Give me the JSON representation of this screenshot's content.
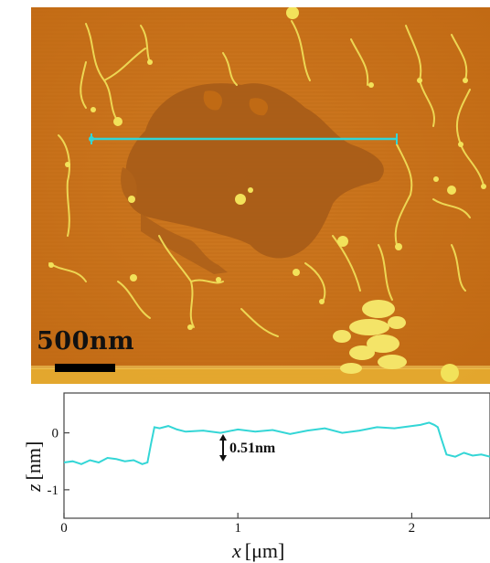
{
  "image": {
    "description_icon": "afm-topography-image",
    "colors": {
      "substrate": "#c7711a",
      "substrate_dark": "#b4620f",
      "film": "#a35a18",
      "features": "#f2e25a",
      "bright_edge": "#e9b232",
      "profile_line": "#33d6d6"
    }
  },
  "scale_bar": {
    "label": "500nm"
  },
  "profile": {
    "annotation": "0.51nm",
    "x_axis_title_var": "x",
    "x_axis_title_unit": "[μm]",
    "y_axis_title_var": "z",
    "y_axis_title_unit": "[nm]",
    "x_ticks": [
      "0",
      "1",
      "2"
    ],
    "y_ticks": [
      "0",
      "-1"
    ]
  },
  "chart_data": {
    "type": "line",
    "title": "",
    "xlabel": "x [μm]",
    "ylabel": "z [nm]",
    "xlim": [
      0,
      2.45
    ],
    "ylim": [
      -1.5,
      0.7
    ],
    "x_ticks": [
      0,
      1,
      2
    ],
    "y_ticks": [
      0,
      -1
    ],
    "grid": false,
    "series": [
      {
        "color": "#33d6d6",
        "x": [
          0,
          0.05,
          0.1,
          0.15,
          0.2,
          0.25,
          0.3,
          0.35,
          0.4,
          0.45,
          0.48,
          0.5,
          0.52,
          0.55,
          0.6,
          0.65,
          0.7,
          0.8,
          0.9,
          1.0,
          1.1,
          1.2,
          1.3,
          1.4,
          1.5,
          1.6,
          1.7,
          1.8,
          1.9,
          2.0,
          2.05,
          2.1,
          2.13,
          2.15,
          2.17,
          2.2,
          2.25,
          2.3,
          2.35,
          2.4,
          2.45
        ],
        "y": [
          -0.52,
          -0.5,
          -0.55,
          -0.48,
          -0.52,
          -0.44,
          -0.46,
          -0.5,
          -0.48,
          -0.55,
          -0.52,
          -0.2,
          0.1,
          0.08,
          0.12,
          0.06,
          0.02,
          0.04,
          0.0,
          0.06,
          0.02,
          0.05,
          -0.02,
          0.04,
          0.08,
          0.0,
          0.04,
          0.1,
          0.08,
          0.12,
          0.14,
          0.18,
          0.14,
          0.1,
          -0.1,
          -0.38,
          -0.42,
          -0.35,
          -0.4,
          -0.38,
          -0.42
        ]
      }
    ]
  }
}
